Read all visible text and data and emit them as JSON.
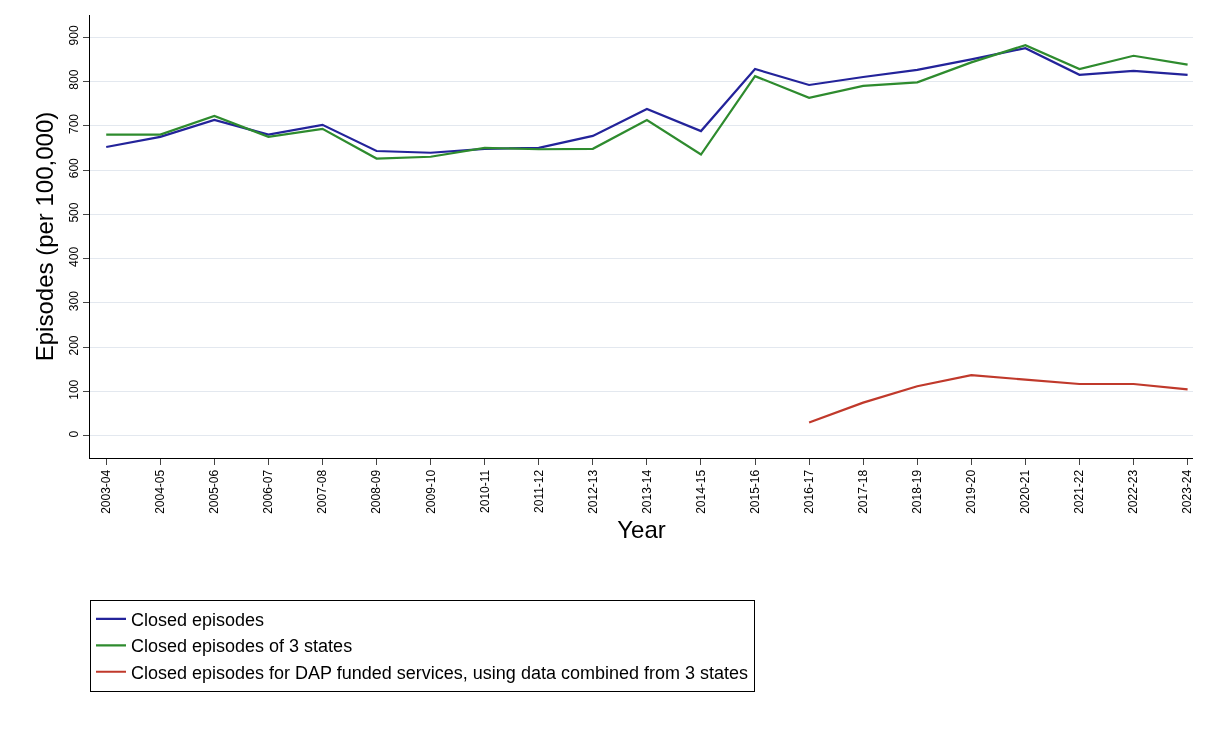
{
  "chart_data": {
    "type": "line",
    "xlabel": "Year",
    "ylabel": "Episodes (per 100,000)",
    "categories": [
      "2003-04",
      "2004-05",
      "2005-06",
      "2006-07",
      "2007-08",
      "2008-09",
      "2009-10",
      "2010-11",
      "2011-12",
      "2012-13",
      "2013-14",
      "2014-15",
      "2015-16",
      "2016-17",
      "2017-18",
      "2018-19",
      "2019-20",
      "2020-21",
      "2021-22",
      "2022-23",
      "2023-24"
    ],
    "series": [
      {
        "name": "Closed episodes",
        "color": "#23239a",
        "values": [
          652,
          675,
          713,
          680,
          702,
          643,
          639,
          648,
          650,
          677,
          738,
          688,
          828,
          792,
          810,
          826,
          850,
          875,
          815,
          824,
          815
        ]
      },
      {
        "name": "Closed episodes of 3 states",
        "color": "#2e8b2e",
        "values": [
          680,
          680,
          722,
          675,
          693,
          626,
          630,
          650,
          647,
          648,
          713,
          635,
          812,
          763,
          790,
          798,
          843,
          882,
          828,
          858,
          838
        ]
      },
      {
        "name": "Closed episodes for DAP funded services, using data combined from 3 states",
        "color": "#c0392b",
        "values": [
          null,
          null,
          null,
          null,
          null,
          null,
          null,
          null,
          null,
          null,
          null,
          null,
          null,
          30,
          75,
          112,
          137,
          127,
          117,
          117,
          105
        ]
      }
    ],
    "ylim": [
      -50,
      950
    ],
    "yticks": [
      0,
      100,
      200,
      300,
      400,
      500,
      600,
      700,
      800,
      900
    ],
    "grid": "y",
    "legend": "bottom",
    "marker": "none",
    "line_style": "solid"
  }
}
